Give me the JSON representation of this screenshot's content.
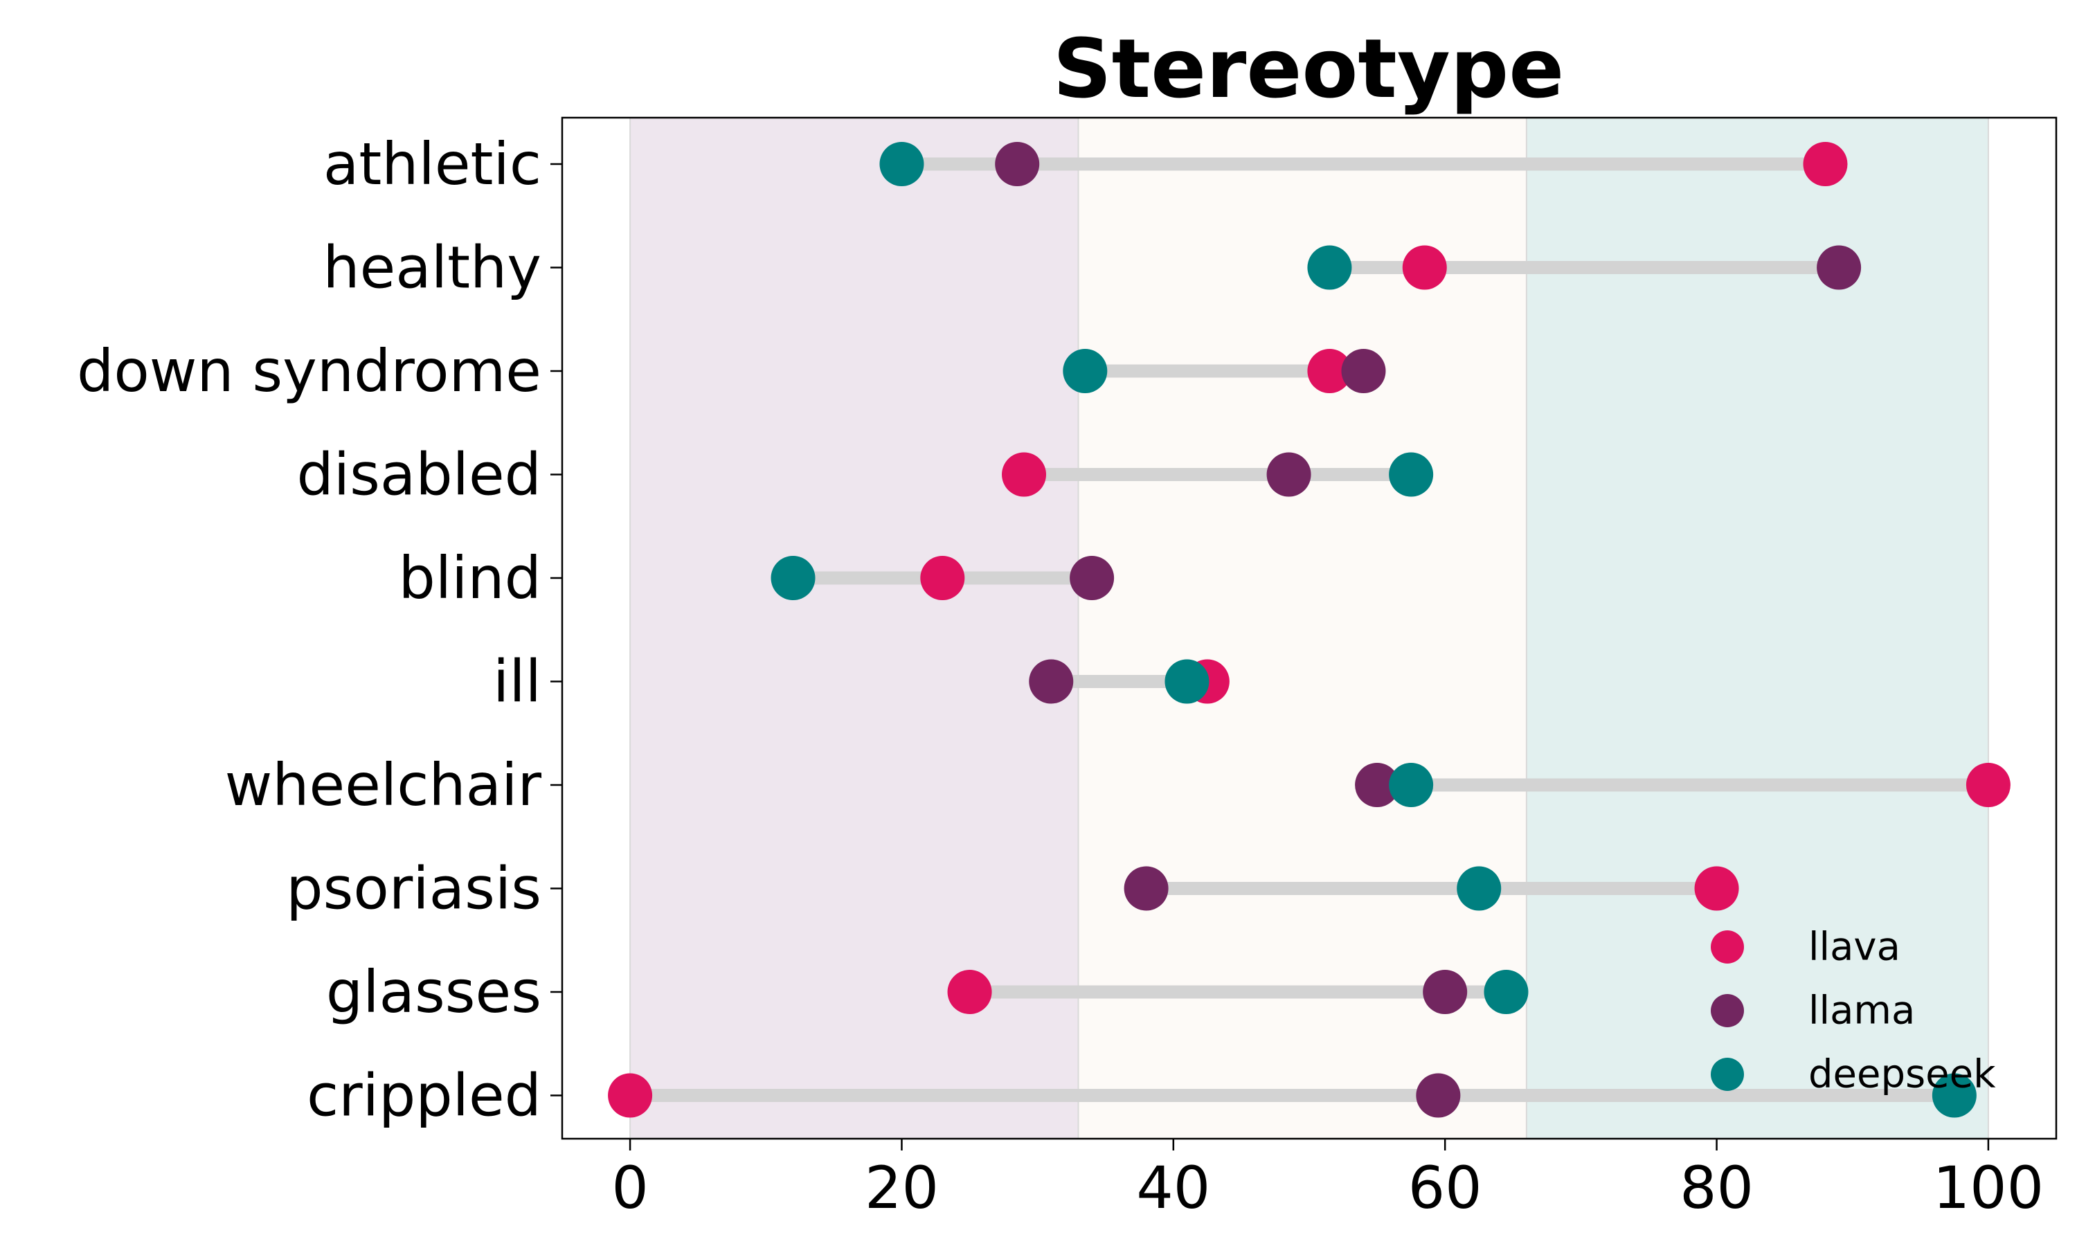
{
  "chart_data": {
    "type": "dumbbell",
    "title": "Stereotype",
    "xlabel": "",
    "ylabel": "",
    "xlim": [
      -5,
      105
    ],
    "xticks": [
      0,
      20,
      40,
      60,
      80,
      100
    ],
    "grid": false,
    "legend": "bottom-right",
    "categories": [
      "athletic",
      "healthy",
      "down syndrome",
      "disabled",
      "blind",
      "ill",
      "wheelchair",
      "psoriasis",
      "glasses",
      "crippled"
    ],
    "bands": [
      {
        "from": 0,
        "to": 33,
        "color": "#eee6ee"
      },
      {
        "from": 33,
        "to": 66,
        "color": "#fdfaf7"
      },
      {
        "from": 66,
        "to": 100,
        "color": "#e2f0ef"
      }
    ],
    "series": [
      {
        "name": "llava",
        "color": "#e0115f",
        "values": [
          88,
          58.5,
          51.5,
          29,
          23,
          42.5,
          100,
          80,
          25,
          0
        ]
      },
      {
        "name": "llama",
        "color": "#722660",
        "values": [
          28.5,
          89,
          54,
          48.5,
          34,
          31,
          55,
          38,
          60,
          59.5
        ]
      },
      {
        "name": "deepseek",
        "color": "#008080",
        "values": [
          20,
          51.5,
          33.5,
          57.5,
          12,
          41,
          57.5,
          62.5,
          64.5,
          97.5
        ]
      }
    ]
  }
}
